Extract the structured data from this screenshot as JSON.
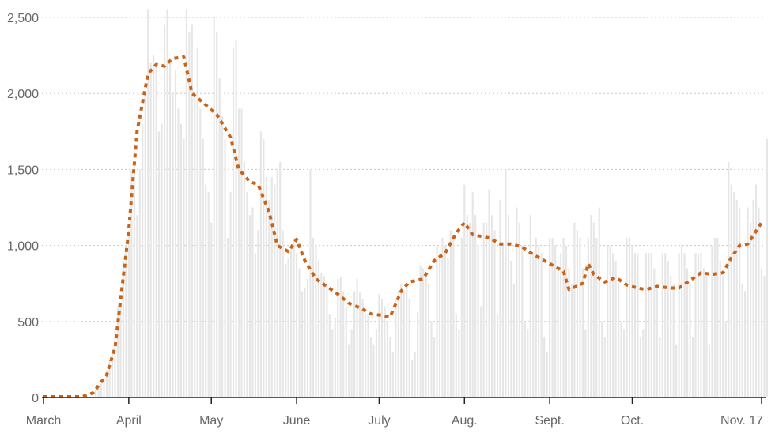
{
  "chart_data": {
    "type": "bar",
    "title": "",
    "xlabel": "",
    "ylabel": "",
    "ylim": [
      0,
      2600
    ],
    "grid": true,
    "x_range": [
      "2020-03-01",
      "2020-11-17"
    ],
    "y_ticks": [
      {
        "value": 0,
        "label": "0"
      },
      {
        "value": 500,
        "label": "500"
      },
      {
        "value": 1000,
        "label": "1,000"
      },
      {
        "value": 1500,
        "label": "1,500"
      },
      {
        "value": 2000,
        "label": "2,000"
      },
      {
        "value": 2500,
        "label": "2,500"
      }
    ],
    "x_ticks": [
      {
        "date": "2020-03-01",
        "label": "March"
      },
      {
        "date": "2020-04-01",
        "label": "April"
      },
      {
        "date": "2020-05-01",
        "label": "May"
      },
      {
        "date": "2020-06-01",
        "label": "June"
      },
      {
        "date": "2020-07-01",
        "label": "July"
      },
      {
        "date": "2020-08-01",
        "label": "Aug."
      },
      {
        "date": "2020-09-01",
        "label": "Sept."
      },
      {
        "date": "2020-10-01",
        "label": "Oct."
      },
      {
        "date": "2020-11-17",
        "label": "Nov. 17"
      }
    ],
    "daily_values": [
      0,
      0,
      0,
      0,
      0,
      0,
      0,
      0,
      0,
      0,
      0,
      0,
      0,
      0,
      0,
      0,
      0,
      0,
      0,
      50,
      60,
      90,
      120,
      180,
      250,
      300,
      450,
      600,
      600,
      900,
      1000,
      1100,
      1500,
      1550,
      1200,
      1500,
      1800,
      2000,
      2550,
      2200,
      2250,
      2200,
      1750,
      1800,
      2450,
      2550,
      2200,
      2000,
      2150,
      1900,
      1800,
      1700,
      2550,
      2400,
      2450,
      2000,
      2300,
      1900,
      1700,
      1400,
      1350,
      1150,
      2500,
      2400,
      2100,
      1850,
      1700,
      1050,
      1350,
      2300,
      2350,
      1900,
      1900,
      1550,
      1350,
      1200,
      1250,
      950,
      1100,
      1750,
      1700,
      1450,
      1300,
      1450,
      1400,
      1500,
      1550,
      1100,
      880,
      920,
      1000,
      1050,
      950,
      850,
      700,
      720,
      780,
      1500,
      1050,
      1000,
      900,
      820,
      800,
      750,
      550,
      450,
      520,
      780,
      790,
      700,
      600,
      350,
      450,
      700,
      780,
      690,
      650,
      550,
      550,
      400,
      350,
      450,
      680,
      650,
      600,
      500,
      400,
      300,
      650,
      700,
      750,
      700,
      750,
      650,
      250,
      300,
      560,
      870,
      850,
      800,
      750,
      500,
      400,
      1000,
      950,
      1050,
      1000,
      920,
      1100,
      1050,
      550,
      450,
      1050,
      1400,
      1200,
      1150,
      1350,
      1200,
      1000,
      600,
      1150,
      1150,
      1370,
      1200,
      1100,
      550,
      1300,
      1000,
      1500,
      1200,
      900,
      750,
      1250,
      1150,
      1000,
      500,
      450,
      1200,
      950,
      1050,
      1000,
      950,
      400,
      300,
      1050,
      1050,
      1000,
      850,
      950,
      1050,
      1000,
      850,
      750,
      1150,
      1100,
      1050,
      850,
      450,
      1050,
      1200,
      1150,
      1050,
      1250,
      500,
      400,
      1000,
      1000,
      950,
      900,
      750,
      500,
      450,
      1050,
      1050,
      1000,
      950,
      950,
      400,
      450,
      950,
      950,
      950,
      850,
      750,
      400,
      950,
      950,
      900,
      800,
      750,
      350,
      950,
      1000,
      950,
      850,
      750,
      400,
      950,
      950,
      950,
      850,
      800,
      350,
      1000,
      1050,
      1050,
      900,
      800,
      500,
      1550,
      1400,
      1350,
      1300,
      1250,
      750,
      700,
      1250,
      1150,
      1300,
      1400,
      1250,
      850,
      800,
      1700
    ],
    "series": [
      {
        "type": "line",
        "points": [
          [
            "2020-03-01",
            5
          ],
          [
            "2020-03-15",
            5
          ],
          [
            "2020-03-19",
            30
          ],
          [
            "2020-03-24",
            150
          ],
          [
            "2020-03-27",
            330
          ],
          [
            "2020-04-01",
            1100
          ],
          [
            "2020-04-04",
            1750
          ],
          [
            "2020-04-08",
            2130
          ],
          [
            "2020-04-11",
            2190
          ],
          [
            "2020-04-14",
            2180
          ],
          [
            "2020-04-17",
            2230
          ],
          [
            "2020-04-21",
            2240
          ],
          [
            "2020-04-24",
            2000
          ],
          [
            "2020-04-28",
            1940
          ],
          [
            "2020-05-03",
            1860
          ],
          [
            "2020-05-08",
            1710
          ],
          [
            "2020-05-11",
            1500
          ],
          [
            "2020-05-15",
            1420
          ],
          [
            "2020-05-18",
            1400
          ],
          [
            "2020-05-22",
            1220
          ],
          [
            "2020-05-25",
            1000
          ],
          [
            "2020-05-29",
            960
          ],
          [
            "2020-06-01",
            1040
          ],
          [
            "2020-06-04",
            900
          ],
          [
            "2020-06-08",
            780
          ],
          [
            "2020-06-12",
            730
          ],
          [
            "2020-06-16",
            680
          ],
          [
            "2020-06-20",
            620
          ],
          [
            "2020-06-24",
            590
          ],
          [
            "2020-06-28",
            550
          ],
          [
            "2020-07-02",
            540
          ],
          [
            "2020-07-05",
            530
          ],
          [
            "2020-07-09",
            700
          ],
          [
            "2020-07-12",
            760
          ],
          [
            "2020-07-17",
            780
          ],
          [
            "2020-07-21",
            900
          ],
          [
            "2020-07-25",
            950
          ],
          [
            "2020-07-29",
            1080
          ],
          [
            "2020-08-01",
            1150
          ],
          [
            "2020-08-04",
            1070
          ],
          [
            "2020-08-10",
            1050
          ],
          [
            "2020-08-14",
            1010
          ],
          [
            "2020-08-18",
            1010
          ],
          [
            "2020-08-22",
            990
          ],
          [
            "2020-08-26",
            940
          ],
          [
            "2020-08-30",
            900
          ],
          [
            "2020-09-02",
            870
          ],
          [
            "2020-09-06",
            830
          ],
          [
            "2020-09-08",
            710
          ],
          [
            "2020-09-13",
            750
          ],
          [
            "2020-09-15",
            880
          ],
          [
            "2020-09-17",
            810
          ],
          [
            "2020-09-21",
            760
          ],
          [
            "2020-09-25",
            790
          ],
          [
            "2020-09-29",
            740
          ],
          [
            "2020-10-03",
            720
          ],
          [
            "2020-10-06",
            710
          ],
          [
            "2020-10-10",
            730
          ],
          [
            "2020-10-15",
            720
          ],
          [
            "2020-10-18",
            720
          ],
          [
            "2020-10-22",
            770
          ],
          [
            "2020-10-26",
            820
          ],
          [
            "2020-10-30",
            810
          ],
          [
            "2020-11-03",
            820
          ],
          [
            "2020-11-06",
            920
          ],
          [
            "2020-11-09",
            1000
          ],
          [
            "2020-11-12",
            1010
          ],
          [
            "2020-11-17",
            1150
          ]
        ]
      }
    ]
  }
}
